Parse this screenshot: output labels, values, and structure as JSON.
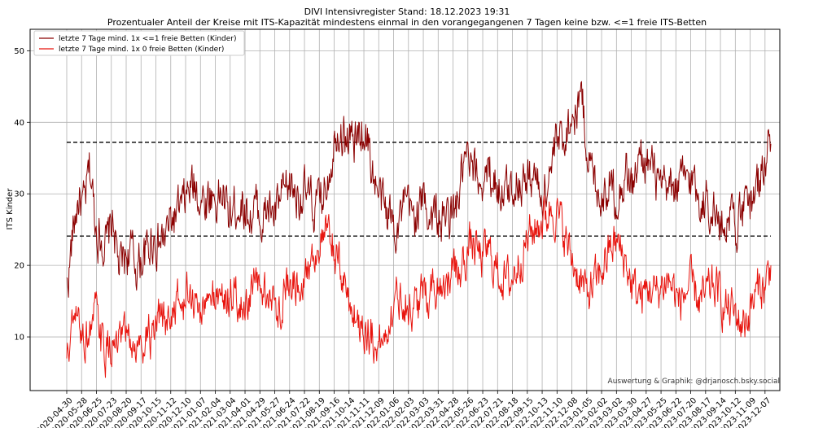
{
  "chart_data": {
    "type": "line",
    "title": "DIVI Intensivregister Stand: 18.12.2023 19:31",
    "subtitle": "Prozentualer Anteil der Kreise mit ITS-Kapazität mindestens einmal in den vorangegangenen 7 Tagen keine bzw. <=1 freie ITS-Betten",
    "xlabel": "",
    "ylabel": "ITS Kinder",
    "ylim": [
      2.5,
      53
    ],
    "yticks": [
      10,
      20,
      30,
      40,
      50
    ],
    "grid": true,
    "legend_position": "top-left",
    "credit": "Auswertung & Graphik: @drjanosch.bsky.social",
    "x_start": "2020-04-30",
    "x_end": "2023-12-18",
    "xtick_labels": [
      "2020-04-30",
      "2020-05-28",
      "2020-06-25",
      "2020-07-23",
      "2020-08-20",
      "2020-09-17",
      "2020-10-15",
      "2020-11-12",
      "2020-12-10",
      "2021-01-07",
      "2021-02-04",
      "2021-03-04",
      "2021-04-01",
      "2021-04-29",
      "2021-05-27",
      "2021-06-24",
      "2021-07-22",
      "2021-08-19",
      "2021-09-16",
      "2021-10-14",
      "2021-11-11",
      "2021-12-09",
      "2022-01-06",
      "2022-02-03",
      "2022-03-03",
      "2022-03-31",
      "2022-04-28",
      "2022-05-26",
      "2022-06-23",
      "2022-07-21",
      "2022-08-18",
      "2022-09-15",
      "2022-10-13",
      "2022-11-10",
      "2022-12-08",
      "2023-01-05",
      "2023-02-02",
      "2023-03-02",
      "2023-03-30",
      "2023-04-27",
      "2023-05-25",
      "2023-06-22",
      "2023-07-20",
      "2023-08-17",
      "2023-09-14",
      "2023-10-12",
      "2023-11-09",
      "2023-12-07"
    ],
    "hlines": [
      {
        "value": 37.2,
        "style": "dashed",
        "color": "#000000"
      },
      {
        "value": 24.1,
        "style": "dashed",
        "color": "#000000"
      }
    ],
    "series": [
      {
        "name": "letzte 7 Tage mind. 1x <=1 freie Betten (Kinder)",
        "color": "#8b0000",
        "values": [
          17,
          24,
          29,
          28,
          33,
          26,
          24,
          23,
          26,
          20,
          21,
          22,
          20,
          21,
          22,
          24,
          23,
          24,
          26,
          27,
          28,
          30,
          31,
          30,
          29,
          30,
          29,
          30,
          27,
          28,
          29,
          28,
          27,
          28,
          26,
          28,
          27,
          29,
          30,
          31,
          30,
          30,
          29,
          28,
          29,
          32,
          36,
          40,
          38,
          38,
          37,
          39,
          38,
          33,
          30,
          28,
          27,
          26,
          27,
          28,
          27,
          28,
          29,
          27,
          27,
          26,
          27,
          27,
          30,
          34,
          33,
          32,
          32,
          33,
          32,
          31,
          30,
          31,
          32,
          32,
          32,
          33,
          30,
          31,
          34,
          37,
          38,
          40,
          41,
          44,
          38,
          33,
          31,
          30,
          32,
          30,
          31,
          33,
          31,
          34,
          35,
          34,
          32,
          30,
          30,
          31,
          31,
          32,
          32,
          31,
          29,
          29,
          28,
          26,
          26,
          28,
          26,
          27,
          28,
          30,
          32,
          35,
          37
        ]
      },
      {
        "name": "letzte 7 Tage mind. 1x 0 freie Betten (Kinder)",
        "color": "#e8150f",
        "values": [
          7,
          11,
          12,
          10,
          11,
          13,
          9,
          8,
          9,
          8,
          10,
          9,
          8,
          9,
          11,
          9,
          12,
          12,
          13,
          15,
          14,
          16,
          15,
          14,
          14,
          15,
          16,
          16,
          15,
          16,
          14,
          15,
          16,
          17,
          16,
          16,
          14,
          15,
          17,
          18,
          18,
          19,
          20,
          22,
          23,
          24,
          23,
          20,
          18,
          15,
          13,
          12,
          11,
          10,
          9,
          10,
          13,
          15,
          16,
          15,
          14,
          15,
          16,
          17,
          17,
          18,
          18,
          19,
          19,
          21,
          23,
          22,
          21,
          22,
          20,
          19,
          18,
          18,
          20,
          22,
          24,
          25,
          26,
          27,
          28,
          27,
          25,
          22,
          20,
          18,
          16,
          17,
          18,
          20,
          22,
          23,
          22,
          20,
          17,
          16,
          16,
          17,
          16,
          17,
          18,
          17,
          15,
          16,
          17,
          16,
          15,
          16,
          17,
          16,
          14,
          14,
          13,
          12,
          13,
          15,
          17,
          17,
          20
        ]
      }
    ]
  }
}
